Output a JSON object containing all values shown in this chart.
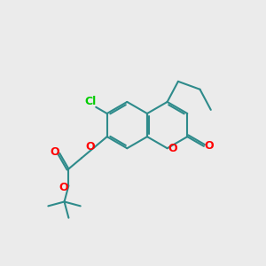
{
  "bg_color": "#ebebeb",
  "bond_color": "#2e8b8b",
  "bond_width": 1.5,
  "dbo": 0.07,
  "o_color": "#ff0000",
  "cl_color": "#00cc00",
  "figsize": [
    3.0,
    3.0
  ],
  "dpi": 100,
  "xlim": [
    0,
    10
  ],
  "ylim": [
    0,
    10
  ]
}
